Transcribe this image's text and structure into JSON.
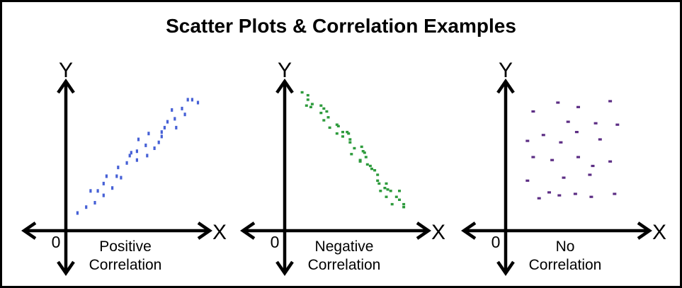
{
  "title": "Scatter Plots & Correlation Examples",
  "colors": {
    "background": "#ffffff",
    "border": "#000000",
    "axis": "#000000",
    "text": "#000000",
    "positive_dots": "#4660d6",
    "negative_dots": "#2d9b3c",
    "no_correlation_dots": "#5c2d84"
  },
  "chart_data": [
    {
      "type": "scatter",
      "correlation": "positive",
      "caption_lines": [
        "Positive",
        "Correlation"
      ],
      "x_label": "X",
      "y_label": "Y",
      "origin_label": "0",
      "color": "#4660d6",
      "marker": {
        "w": 3.2,
        "h": 5
      },
      "x_range": [
        0,
        100
      ],
      "y_range": [
        0,
        100
      ],
      "grid": false,
      "points": [
        [
          8,
          12
        ],
        [
          14,
          16
        ],
        [
          17,
          27
        ],
        [
          20,
          19
        ],
        [
          22,
          27
        ],
        [
          26,
          24
        ],
        [
          26,
          32
        ],
        [
          28,
          37
        ],
        [
          32,
          29
        ],
        [
          35,
          37
        ],
        [
          36,
          43
        ],
        [
          38,
          36
        ],
        [
          42,
          46
        ],
        [
          44,
          51
        ],
        [
          45,
          53
        ],
        [
          49,
          54
        ],
        [
          49,
          48
        ],
        [
          50,
          62
        ],
        [
          55,
          58
        ],
        [
          56,
          51
        ],
        [
          57,
          66
        ],
        [
          61,
          56
        ],
        [
          64,
          60
        ],
        [
          66,
          67
        ],
        [
          66,
          64
        ],
        [
          68,
          70
        ],
        [
          70,
          74
        ],
        [
          73,
          82
        ],
        [
          75,
          76
        ],
        [
          76,
          70
        ],
        [
          80,
          83
        ],
        [
          82,
          79
        ],
        [
          84,
          89
        ],
        [
          87,
          89
        ],
        [
          91,
          87
        ]
      ]
    },
    {
      "type": "scatter",
      "correlation": "negative",
      "caption_lines": [
        "Negative",
        "Correlation"
      ],
      "x_label": "X",
      "y_label": "Y",
      "origin_label": "0",
      "color": "#2d9b3c",
      "marker": {
        "w": 4,
        "h": 3.4
      },
      "x_range": [
        0,
        100
      ],
      "y_range": [
        0,
        100
      ],
      "grid": false,
      "points": [
        [
          12,
          94
        ],
        [
          16,
          92
        ],
        [
          16,
          89
        ],
        [
          15,
          85
        ],
        [
          19,
          86
        ],
        [
          18,
          84
        ],
        [
          25,
          85
        ],
        [
          27,
          83
        ],
        [
          25,
          80
        ],
        [
          29,
          81
        ],
        [
          30,
          77
        ],
        [
          27,
          75
        ],
        [
          31,
          70
        ],
        [
          36,
          72
        ],
        [
          37,
          71
        ],
        [
          36,
          66
        ],
        [
          40,
          67
        ],
        [
          43,
          67
        ],
        [
          44,
          66
        ],
        [
          40,
          64
        ],
        [
          45,
          62
        ],
        [
          45,
          60
        ],
        [
          48,
          56
        ],
        [
          53,
          57
        ],
        [
          54,
          54
        ],
        [
          55,
          53
        ],
        [
          46,
          52
        ],
        [
          52,
          48
        ],
        [
          56,
          50
        ],
        [
          52,
          47
        ],
        [
          57,
          45
        ],
        [
          59,
          44
        ],
        [
          60,
          42
        ],
        [
          62,
          41
        ],
        [
          64,
          38
        ],
        [
          64,
          34
        ],
        [
          65,
          32
        ],
        [
          70,
          32
        ],
        [
          66,
          27
        ],
        [
          69,
          29
        ],
        [
          71,
          28
        ],
        [
          73,
          27
        ],
        [
          79,
          27
        ],
        [
          70,
          23
        ],
        [
          77,
          23
        ],
        [
          79,
          21
        ],
        [
          82,
          18
        ],
        [
          74,
          18
        ],
        [
          82,
          16
        ]
      ]
    },
    {
      "type": "scatter",
      "correlation": "none",
      "caption_lines": [
        "No",
        "Correlation"
      ],
      "x_label": "X",
      "y_label": "Y",
      "origin_label": "0",
      "color": "#5c2d84",
      "marker": {
        "w": 5,
        "h": 3.2
      },
      "x_range": [
        0,
        100
      ],
      "y_range": [
        0,
        100
      ],
      "grid": false,
      "points": [
        [
          36,
          87
        ],
        [
          50,
          84
        ],
        [
          72,
          88
        ],
        [
          19,
          81
        ],
        [
          43,
          74
        ],
        [
          62,
          73
        ],
        [
          77,
          72
        ],
        [
          49,
          67
        ],
        [
          26,
          65
        ],
        [
          15,
          61
        ],
        [
          38,
          60
        ],
        [
          65,
          62
        ],
        [
          19,
          50
        ],
        [
          32,
          48
        ],
        [
          50,
          50
        ],
        [
          72,
          47
        ],
        [
          60,
          44
        ],
        [
          58,
          38
        ],
        [
          40,
          36
        ],
        [
          15,
          34
        ],
        [
          30,
          26
        ],
        [
          37,
          24
        ],
        [
          48,
          25
        ],
        [
          23,
          22
        ],
        [
          59,
          23
        ],
        [
          75,
          25
        ]
      ]
    }
  ]
}
